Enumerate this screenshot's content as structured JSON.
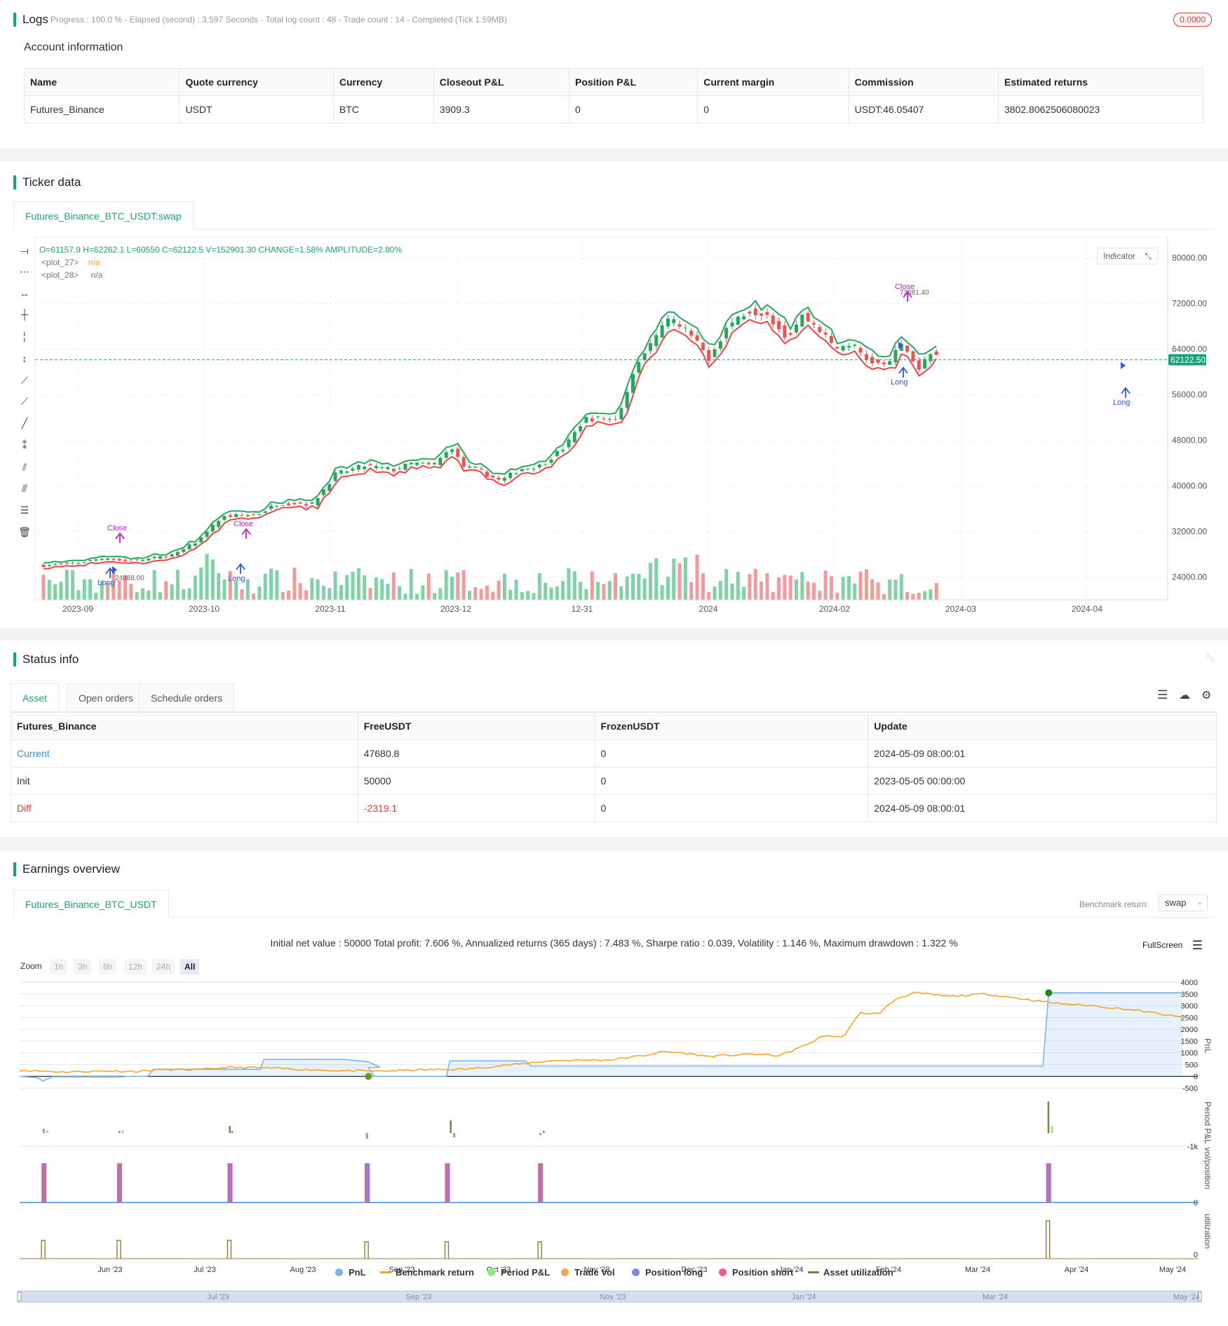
{
  "logs": {
    "title": "Logs",
    "status": "Progress : 100.0 % - Elapsed (second) : 3.597  Seconds - Total log count : 48 - Trade count : 14 - Completed (Tick 1.59MB)",
    "badge": "0.0000"
  },
  "account": {
    "title": "Account information",
    "columns": [
      "Name",
      "Quote currency",
      "Currency",
      "Closeout P&L",
      "Position P&L",
      "Current margin",
      "Commission",
      "Estimated returns"
    ],
    "row": [
      "Futures_Binance",
      "USDT",
      "BTC",
      "3909.3",
      "0",
      "0",
      "USDT:46.05407",
      "3802.8062506080023"
    ]
  },
  "ticker": {
    "title": "Ticker data",
    "tab": "Futures_Binance_BTC_USDT:swap",
    "ohlc": "O=61157.9 H=62262.1 L=60550 C=62122.5 V=152901.30 CHANGE=1.58% AMPLITUDE=2.80%",
    "plot27": "<plot_27>",
    "plot28": "<plot_28>",
    "na": "n/a",
    "indicator_btn": "Indicator",
    "price_label": "62122.50",
    "y_ticks": [
      "80000.00",
      "72000.00",
      "64000.00",
      "56000.00",
      "48000.00",
      "40000.00",
      "32000.00",
      "24000.00"
    ],
    "x_ticks": [
      "2023-09",
      "2023-10",
      "2023-11",
      "2023-12",
      "12-31",
      "2024",
      "2024-02",
      "2024-03",
      "2024-04"
    ],
    "annotations": {
      "high_label": "73881.40",
      "low_label": "24888.00",
      "long": "Long",
      "close": "Close"
    }
  },
  "status": {
    "title": "Status info",
    "tabs": [
      "Asset",
      "Open orders",
      "Schedule orders"
    ],
    "columns": [
      "Futures_Binance",
      "FreeUSDT",
      "FrozenUSDT",
      "Update"
    ],
    "rows": [
      [
        "Current",
        "47680.8",
        "0",
        "2024-05-09 08:00:01"
      ],
      [
        "Init",
        "50000",
        "0",
        "2023-05-05 00:00:00"
      ],
      [
        "Diff",
        "-2319.1",
        "0",
        "2024-05-09 08:00:01"
      ]
    ]
  },
  "earnings": {
    "title": "Earnings overview",
    "tab": "Futures_Binance_BTC_USDT",
    "benchmark_label": "Benchmark return:",
    "benchmark_value": "swap",
    "summary": "Initial net value : 50000 Total profit: 7.606 %, Annualized returns (365 days) : 7.483 %, Sharpe ratio : 0.039, Volatility : 1.146 %, Maximum drawdown : 1.322 %",
    "fullscreen": "FullScreen",
    "zoom_label": "Zoom",
    "zoom_options": [
      "1h",
      "3h",
      "8h",
      "12h",
      "24h",
      "All"
    ],
    "pnl_ticks": [
      "4000",
      "3500",
      "3000",
      "2500",
      "2000",
      "1500",
      "1000",
      "500",
      "0",
      "-500"
    ],
    "period_tick": "-1k",
    "zero_tick": "0",
    "axis_titles": [
      "PnL",
      "Period P&L",
      "vol/position",
      "utilization"
    ],
    "x_ticks": [
      "Jun '23",
      "Jul '23",
      "Aug '23",
      "Sep '23",
      "Oct '23",
      "Nov '23",
      "Dec '23",
      "Jan '24",
      "Feb '24",
      "Mar '24",
      "Apr '24",
      "May '24"
    ],
    "navigator_ticks": [
      "Jul '23",
      "Sep '23",
      "Nov '23",
      "Jan '24",
      "Mar '24",
      "May '24"
    ],
    "legend": [
      "PnL",
      "Benchmark return",
      "Period P&L",
      "Trade Vol",
      "Position long",
      "Position short",
      "Asset utilization"
    ],
    "colors": {
      "pnl": "#7cb5ec",
      "benchmark": "#f5a623",
      "period": "#90ed7d",
      "tradevol": "#f7a35c",
      "long": "#8085e9",
      "short": "#f15c80",
      "util": "#8d7c3f"
    }
  }
}
